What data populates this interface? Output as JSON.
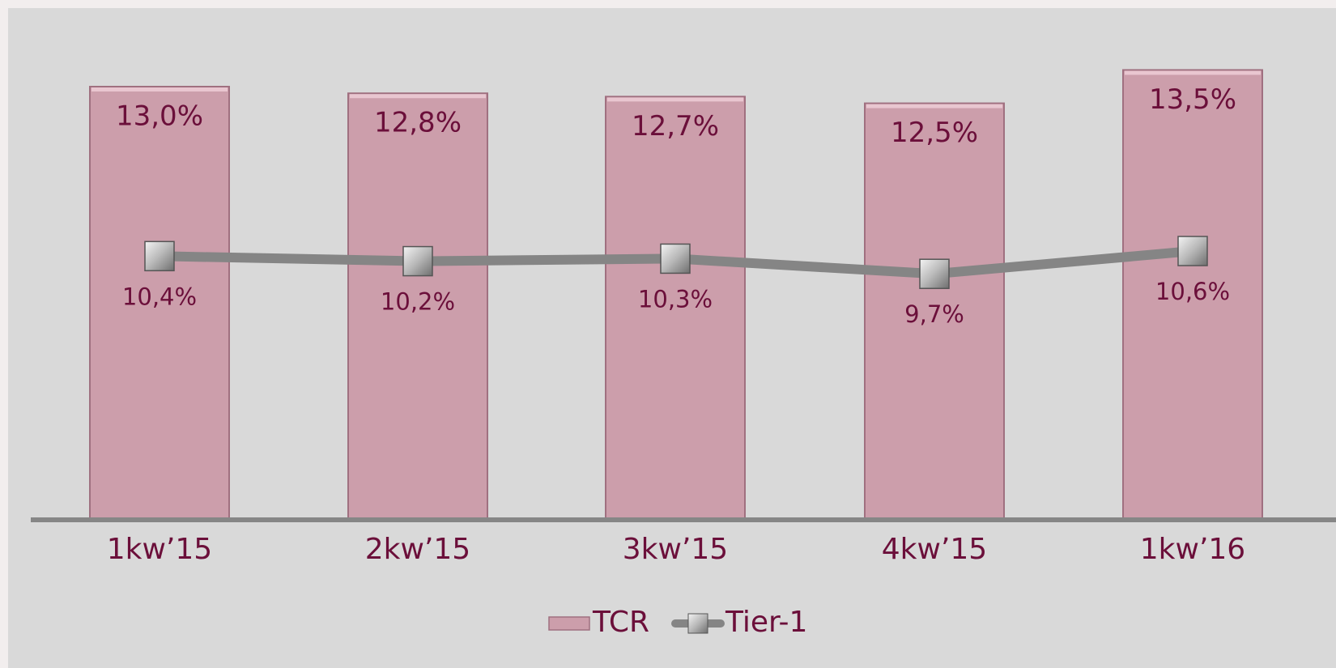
{
  "chart_data": {
    "type": "bar",
    "categories": [
      "1kw’15",
      "2kw’15",
      "3kw’15",
      "4kw’15",
      "1kw’16"
    ],
    "series": [
      {
        "name": "TCR",
        "type": "bar",
        "color": "#cc9eab",
        "values": [
          13.0,
          12.8,
          12.7,
          12.5,
          13.5
        ],
        "value_labels": [
          "13,0%",
          "12,8%",
          "12,7%",
          "12,5%",
          "13,5%"
        ]
      },
      {
        "name": "Tier-1",
        "type": "line",
        "axis": "y2",
        "color": "#858585",
        "values": [
          10.4,
          10.2,
          10.3,
          9.7,
          10.6
        ],
        "value_labels": [
          "10,4%",
          "10,2%",
          "10,3%",
          "9,7%",
          "10,6%"
        ]
      }
    ],
    "ylim": [
      0,
      15.6
    ],
    "y2lim": [
      0,
      20.5
    ],
    "legend": "bottom"
  }
}
